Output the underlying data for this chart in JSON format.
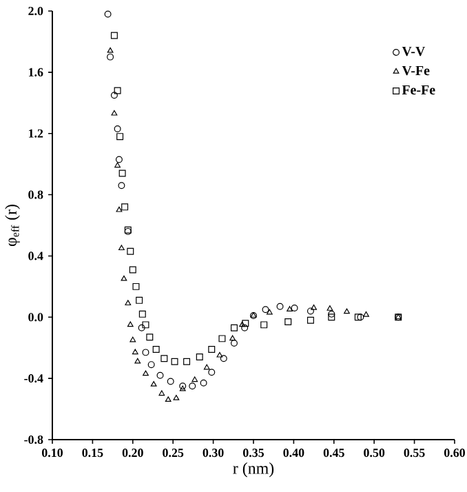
{
  "chart_data": {
    "type": "scatter",
    "xlabel": "r (nm)",
    "ylabel": "φ$_{eff}$ (r)",
    "xlim": [
      0.1,
      0.6
    ],
    "ylim": [
      -0.8,
      2.0
    ],
    "xticks": [
      {
        "value": 0.1,
        "label": "0.10"
      },
      {
        "value": 0.15,
        "label": "0.15"
      },
      {
        "value": 0.2,
        "label": "0.20"
      },
      {
        "value": 0.25,
        "label": "0.25"
      },
      {
        "value": 0.3,
        "label": "0.30"
      },
      {
        "value": 0.35,
        "label": "0.35"
      },
      {
        "value": 0.4,
        "label": "0.40"
      },
      {
        "value": 0.45,
        "label": "0.45"
      },
      {
        "value": 0.5,
        "label": "0.50"
      },
      {
        "value": 0.55,
        "label": "0.55"
      },
      {
        "value": 0.6,
        "label": "0.60"
      }
    ],
    "yticks": [
      {
        "value": -0.8,
        "label": "-0.8"
      },
      {
        "value": -0.4,
        "label": "-0.4"
      },
      {
        "value": 0,
        "label": "0.0"
      },
      {
        "value": 0.4,
        "label": "0.4"
      },
      {
        "value": 0.8,
        "label": "0.8"
      },
      {
        "value": 1.2,
        "label": "1.2"
      },
      {
        "value": 1.6,
        "label": "1.6"
      },
      {
        "value": 2.0,
        "label": "2.0"
      }
    ],
    "legend": "top right",
    "grid": false,
    "series": [
      {
        "name": "V-V",
        "color": "#000000",
        "marker": "circle",
        "x": [
          0.169,
          0.172,
          0.177,
          0.181,
          0.183,
          0.186,
          0.194,
          0.211,
          0.216,
          0.223,
          0.234,
          0.247,
          0.262,
          0.274,
          0.288,
          0.298,
          0.313,
          0.326,
          0.339,
          0.35,
          0.365,
          0.383,
          0.401,
          0.421,
          0.447,
          0.483,
          0.53
        ],
        "values": [
          1.98,
          1.7,
          1.45,
          1.23,
          1.03,
          0.86,
          0.56,
          -0.07,
          -0.23,
          -0.31,
          -0.38,
          -0.42,
          -0.45,
          -0.45,
          -0.43,
          -0.36,
          -0.27,
          -0.17,
          -0.07,
          0.01,
          0.05,
          0.07,
          0.06,
          0.04,
          0.02,
          0.0,
          0.0
        ]
      },
      {
        "name": "V-Fe",
        "color": "#000000",
        "marker": "triangle",
        "x": [
          0.172,
          0.177,
          0.181,
          0.183,
          0.186,
          0.189,
          0.194,
          0.197,
          0.2,
          0.203,
          0.206,
          0.216,
          0.226,
          0.236,
          0.244,
          0.254,
          0.262,
          0.277,
          0.292,
          0.308,
          0.324,
          0.336,
          0.35,
          0.37,
          0.395,
          0.425,
          0.445,
          0.466,
          0.49,
          0.53
        ],
        "values": [
          1.74,
          1.33,
          0.99,
          0.7,
          0.45,
          0.25,
          0.09,
          -0.05,
          -0.15,
          -0.23,
          -0.29,
          -0.37,
          -0.44,
          -0.5,
          -0.54,
          -0.53,
          -0.47,
          -0.41,
          -0.33,
          -0.25,
          -0.14,
          -0.05,
          0.01,
          0.03,
          0.05,
          0.06,
          0.055,
          0.035,
          0.015,
          0.0
        ]
      },
      {
        "name": "Fe-Fe",
        "color": "#000000",
        "marker": "square",
        "x": [
          0.177,
          0.181,
          0.184,
          0.187,
          0.19,
          0.194,
          0.197,
          0.2,
          0.204,
          0.208,
          0.212,
          0.216,
          0.221,
          0.229,
          0.239,
          0.252,
          0.267,
          0.283,
          0.298,
          0.311,
          0.326,
          0.34,
          0.363,
          0.393,
          0.421,
          0.447,
          0.48,
          0.53
        ],
        "values": [
          1.84,
          1.48,
          1.18,
          0.94,
          0.72,
          0.57,
          0.43,
          0.31,
          0.2,
          0.11,
          0.02,
          -0.05,
          -0.13,
          -0.21,
          -0.27,
          -0.29,
          -0.29,
          -0.26,
          -0.21,
          -0.14,
          -0.07,
          -0.04,
          -0.05,
          -0.03,
          -0.02,
          0.0,
          0.0,
          0.0
        ]
      }
    ]
  }
}
